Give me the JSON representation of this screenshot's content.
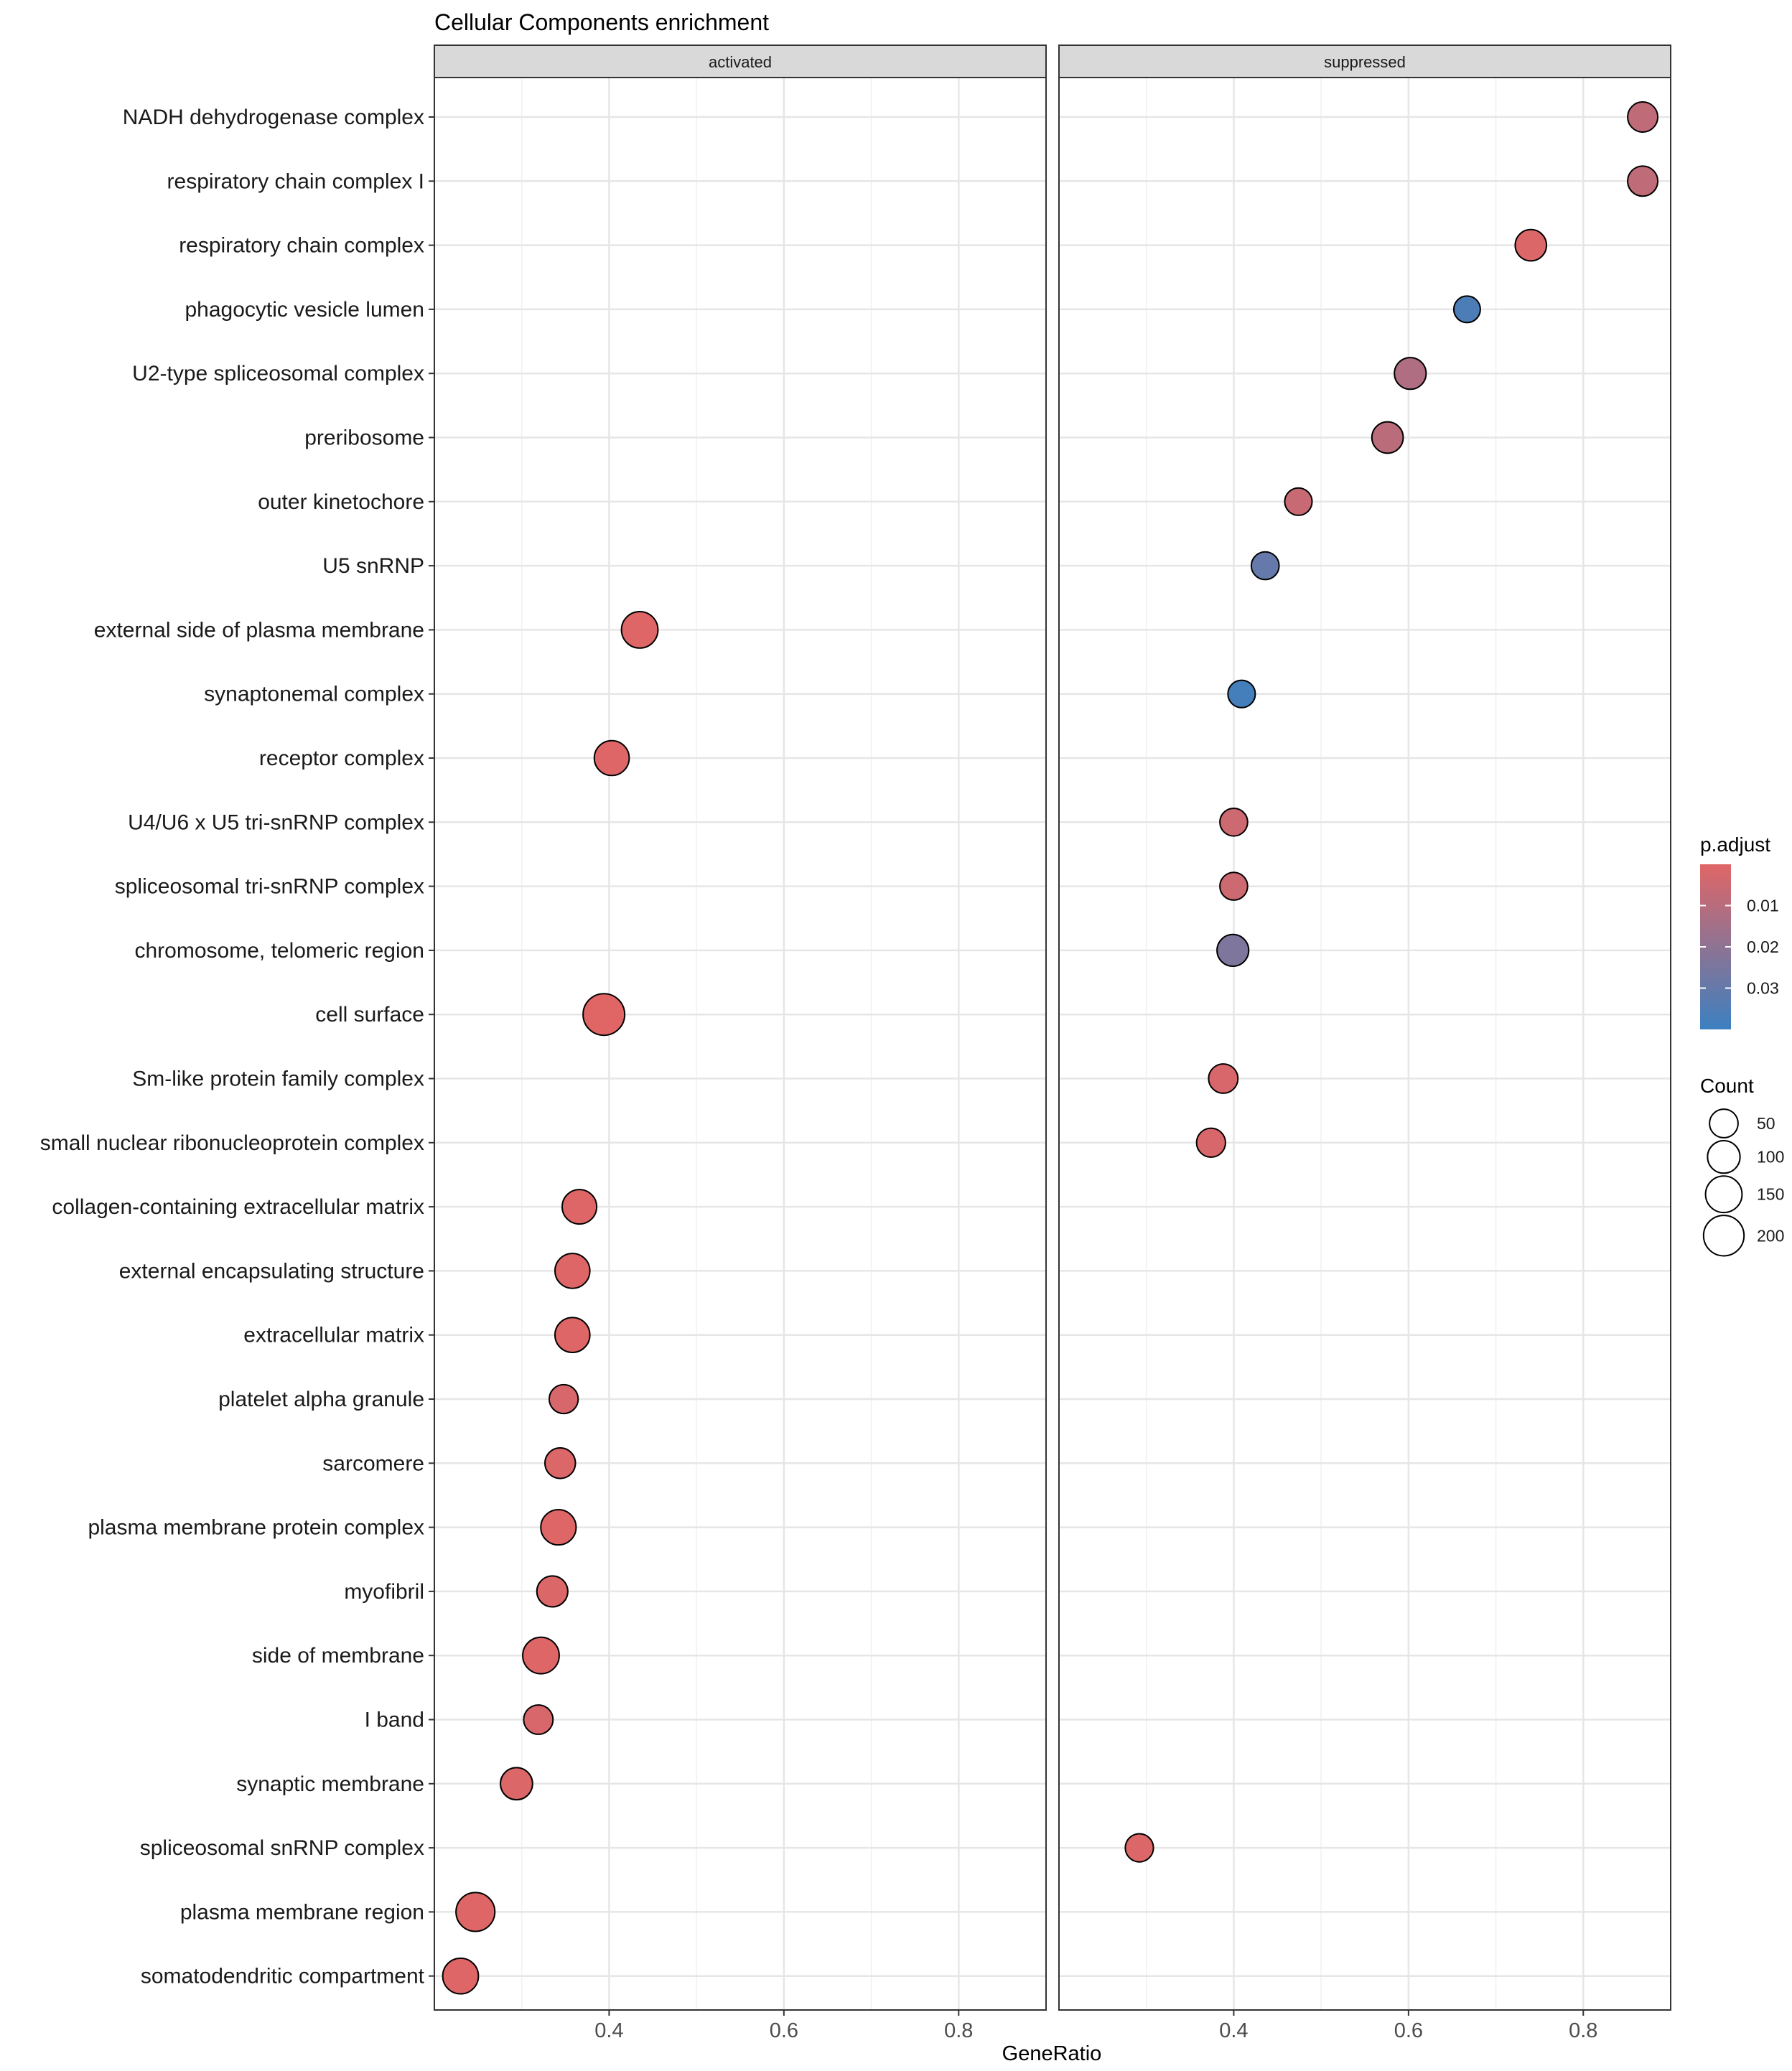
{
  "chart_data": {
    "type": "scatter",
    "title": "Cellular Components enrichment",
    "xlabel": "GeneRatio",
    "ylabel": "",
    "xlim": [
      0.2,
      0.9
    ],
    "x_ticks": [
      0.4,
      0.6,
      0.8
    ],
    "x_tick_labels": [
      "0.4",
      "0.6",
      "0.8"
    ],
    "grid": true,
    "facets": [
      {
        "key": "activated",
        "label": "activated"
      },
      {
        "key": "suppressed",
        "label": "suppressed"
      }
    ],
    "categories": [
      "NADH dehydrogenase complex",
      "respiratory chain complex I",
      "respiratory chain complex",
      "phagocytic vesicle lumen",
      "U2-type spliceosomal complex",
      "preribosome",
      "outer kinetochore",
      "U5 snRNP",
      "external side of plasma membrane",
      "synaptonemal complex",
      "receptor complex",
      "U4/U6 x U5 tri-snRNP complex",
      "spliceosomal tri-snRNP complex",
      "chromosome, telomeric region",
      "cell surface",
      "Sm-like protein family complex",
      "small nuclear ribonucleoprotein complex",
      "collagen-containing extracellular matrix",
      "external encapsulating structure",
      "extracellular matrix",
      "platelet alpha granule",
      "sarcomere",
      "plasma membrane protein complex",
      "myofibril",
      "side of membrane",
      "I band",
      "synaptic membrane",
      "spliceosomal snRNP complex",
      "plasma membrane region",
      "somatodendritic compartment"
    ],
    "points": [
      {
        "facet": "activated",
        "category": "external side of plasma membrane",
        "gene_ratio": 0.435,
        "count": 150,
        "p_adjust": 0.0002
      },
      {
        "facet": "activated",
        "category": "receptor complex",
        "gene_ratio": 0.403,
        "count": 130,
        "p_adjust": 0.0005
      },
      {
        "facet": "activated",
        "category": "cell surface",
        "gene_ratio": 0.394,
        "count": 215,
        "p_adjust": 0.0001
      },
      {
        "facet": "activated",
        "category": "collagen-containing extracellular matrix",
        "gene_ratio": 0.366,
        "count": 125,
        "p_adjust": 0.0005
      },
      {
        "facet": "activated",
        "category": "external encapsulating structure",
        "gene_ratio": 0.358,
        "count": 130,
        "p_adjust": 0.0005
      },
      {
        "facet": "activated",
        "category": "extracellular matrix",
        "gene_ratio": 0.358,
        "count": 130,
        "p_adjust": 0.0005
      },
      {
        "facet": "activated",
        "category": "platelet alpha granule",
        "gene_ratio": 0.348,
        "count": 55,
        "p_adjust": 0.002
      },
      {
        "facet": "activated",
        "category": "sarcomere",
        "gene_ratio": 0.344,
        "count": 75,
        "p_adjust": 0.001
      },
      {
        "facet": "activated",
        "category": "plasma membrane protein complex",
        "gene_ratio": 0.342,
        "count": 135,
        "p_adjust": 0.0005
      },
      {
        "facet": "activated",
        "category": "myofibril",
        "gene_ratio": 0.335,
        "count": 80,
        "p_adjust": 0.001
      },
      {
        "facet": "activated",
        "category": "side of membrane",
        "gene_ratio": 0.322,
        "count": 150,
        "p_adjust": 0.0003
      },
      {
        "facet": "activated",
        "category": "I band",
        "gene_ratio": 0.319,
        "count": 60,
        "p_adjust": 0.002
      },
      {
        "facet": "activated",
        "category": "synaptic membrane",
        "gene_ratio": 0.294,
        "count": 95,
        "p_adjust": 0.001
      },
      {
        "facet": "activated",
        "category": "plasma membrane region",
        "gene_ratio": 0.247,
        "count": 180,
        "p_adjust": 0.0004
      },
      {
        "facet": "activated",
        "category": "somatodendritic compartment",
        "gene_ratio": 0.23,
        "count": 140,
        "p_adjust": 0.0004
      },
      {
        "facet": "suppressed",
        "category": "NADH dehydrogenase complex",
        "gene_ratio": 0.868,
        "count": 70,
        "p_adjust": 0.008
      },
      {
        "facet": "suppressed",
        "category": "respiratory chain complex I",
        "gene_ratio": 0.868,
        "count": 70,
        "p_adjust": 0.008
      },
      {
        "facet": "suppressed",
        "category": "respiratory chain complex",
        "gene_ratio": 0.74,
        "count": 85,
        "p_adjust": 0.001
      },
      {
        "facet": "suppressed",
        "category": "phagocytic vesicle lumen",
        "gene_ratio": 0.667,
        "count": 25,
        "p_adjust": 0.036
      },
      {
        "facet": "suppressed",
        "category": "U2-type spliceosomal complex",
        "gene_ratio": 0.602,
        "count": 90,
        "p_adjust": 0.012
      },
      {
        "facet": "suppressed",
        "category": "preribosome",
        "gene_ratio": 0.576,
        "count": 85,
        "p_adjust": 0.009
      },
      {
        "facet": "suppressed",
        "category": "outer kinetochore",
        "gene_ratio": 0.474,
        "count": 35,
        "p_adjust": 0.006
      },
      {
        "facet": "suppressed",
        "category": "U5 snRNP",
        "gene_ratio": 0.436,
        "count": 40,
        "p_adjust": 0.03
      },
      {
        "facet": "suppressed",
        "category": "synaptonemal complex",
        "gene_ratio": 0.409,
        "count": 35,
        "p_adjust": 0.038
      },
      {
        "facet": "suppressed",
        "category": "U4/U6 x U5 tri-snRNP complex",
        "gene_ratio": 0.4,
        "count": 40,
        "p_adjust": 0.005
      },
      {
        "facet": "suppressed",
        "category": "spliceosomal tri-snRNP complex",
        "gene_ratio": 0.4,
        "count": 40,
        "p_adjust": 0.005
      },
      {
        "facet": "suppressed",
        "category": "chromosome, telomeric region",
        "gene_ratio": 0.399,
        "count": 90,
        "p_adjust": 0.024
      },
      {
        "facet": "suppressed",
        "category": "Sm-like protein family complex",
        "gene_ratio": 0.388,
        "count": 60,
        "p_adjust": 0.002
      },
      {
        "facet": "suppressed",
        "category": "small nuclear ribonucleoprotein complex",
        "gene_ratio": 0.374,
        "count": 55,
        "p_adjust": 0.002
      },
      {
        "facet": "suppressed",
        "category": "spliceosomal snRNP complex",
        "gene_ratio": 0.292,
        "count": 45,
        "p_adjust": 0.001
      }
    ],
    "color_legend": {
      "title": "p.adjust",
      "low_color": "#E06666",
      "high_color": "#3C80C0",
      "range": [
        0.0,
        0.04
      ],
      "breaks": [
        0.01,
        0.02,
        0.03
      ],
      "break_labels": [
        "0.01",
        "0.02",
        "0.03"
      ]
    },
    "size_legend": {
      "title": "Count",
      "breaks": [
        50,
        100,
        150,
        200
      ],
      "break_labels": [
        "50",
        "100",
        "150",
        "200"
      ]
    },
    "legend_position": "right"
  }
}
